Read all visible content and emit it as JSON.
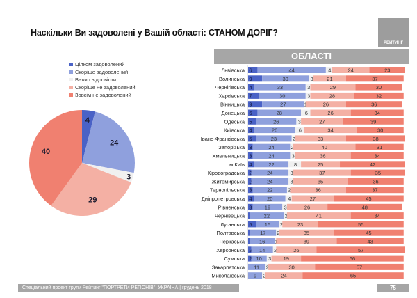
{
  "header": {
    "title": "Наскільки Ви задоволені у Вашій області: СТАНОМ ДОРІГ?",
    "logo_text": "РЕЙТИНГ",
    "regions_header": "ОБЛАСТІ"
  },
  "footer": {
    "text": "Спеціальний проект групи Рейтинг \"ПОРТРЕТИ РЕГІОНІВ\". УКРАЇНА | грудень 2018",
    "page_number": "75"
  },
  "colors": {
    "fully_satisfied": "#4a62c6",
    "rather_satisfied": "#8fa0dd",
    "hard_to_say": "#f0f0f0",
    "rather_unsatisfied": "#f4b0a4",
    "not_satisfied": "#f08070"
  },
  "chart_data": [
    {
      "type": "pie",
      "title": "",
      "legend_position": "top-left",
      "categories": [
        "Цілком задоволений",
        "Скоріше задоволений",
        "Важко відповісти",
        "Скоріше не задоволений",
        "Зовсім не задоволений"
      ],
      "values": [
        4,
        24,
        3,
        29,
        40
      ]
    },
    {
      "type": "bar",
      "orientation": "horizontal",
      "stacked": true,
      "title": "ОБЛАСТІ",
      "categories": [
        "Львівська",
        "Волинська",
        "Чернігівська",
        "Харківська",
        "Вінницька",
        "Донецька",
        "Одеська",
        "Київська",
        "Івано-Франківська",
        "Запорізька",
        "Хмельницька",
        "м.Київ",
        "Кіровоградська",
        "Житомирська",
        "Тернопільська",
        "Дніпропетровська",
        "Рівненська",
        "Чернівецька",
        "Луганська",
        "Полтавська",
        "Черкаська",
        "Херсонська",
        "Сумська",
        "Закарпатська",
        "Миколаївська"
      ],
      "series": [
        {
          "name": "Цілком задоволений",
          "values": [
            6,
            9,
            4,
            7,
            9,
            6,
            5,
            4,
            5,
            3,
            3,
            4,
            2,
            2,
            3,
            4,
            3,
            1,
            5,
            1,
            1,
            2,
            2,
            0,
            0
          ]
        },
        {
          "name": "Скоріше задоволений",
          "values": [
            44,
            30,
            33,
            30,
            27,
            28,
            26,
            26,
            23,
            24,
            24,
            22,
            24,
            24,
            22,
            20,
            19,
            22,
            15,
            17,
            16,
            14,
            10,
            11,
            9
          ]
        },
        {
          "name": "Важко відповісти",
          "values": [
            4,
            3,
            3,
            3,
            1,
            6,
            3,
            6,
            2,
            2,
            3,
            8,
            3,
            3,
            2,
            4,
            3,
            2,
            2,
            2,
            1,
            2,
            3,
            2,
            2
          ]
        },
        {
          "name": "Скоріше не задоволений",
          "values": [
            24,
            21,
            29,
            28,
            26,
            26,
            27,
            34,
            33,
            40,
            36,
            25,
            37,
            35,
            36,
            27,
            26,
            41,
            23,
            35,
            39,
            26,
            19,
            30,
            24
          ]
        },
        {
          "name": "Зовсім не задоволений",
          "values": [
            23,
            37,
            30,
            32,
            36,
            34,
            39,
            30,
            38,
            31,
            34,
            42,
            35,
            36,
            37,
            45,
            48,
            34,
            55,
            45,
            43,
            57,
            66,
            57,
            65
          ]
        }
      ],
      "xlim": [
        0,
        101
      ]
    }
  ]
}
